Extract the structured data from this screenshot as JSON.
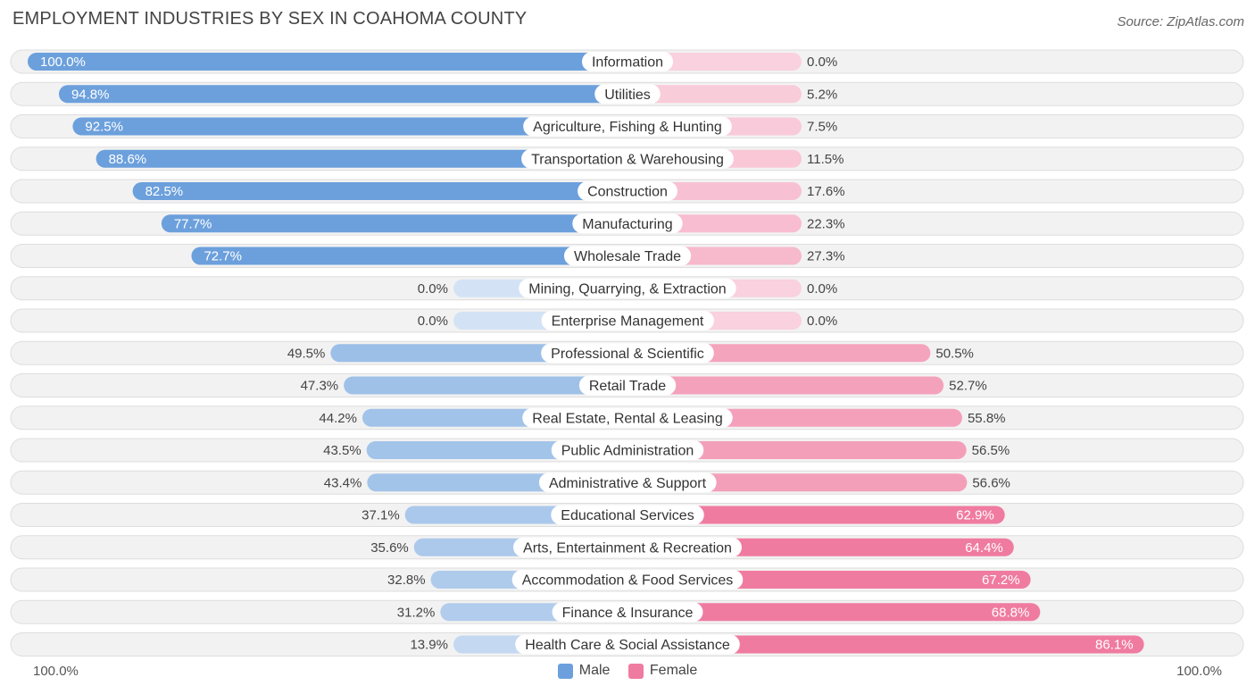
{
  "title": "EMPLOYMENT INDUSTRIES BY SEX IN COAHOMA COUNTY",
  "source": "Source: ZipAtlas.com",
  "colors": {
    "male": "#6ca0dc",
    "female": "#f07ba0",
    "row_bg": "#f2f2f2"
  },
  "legend": {
    "male_label": "Male",
    "female_label": "Female"
  },
  "axis": {
    "left_label": "100.0%",
    "right_label": "100.0%"
  },
  "chart_data": {
    "type": "bar",
    "orientation": "horizontal-diverging",
    "title": "EMPLOYMENT INDUSTRIES BY SEX IN COAHOMA COUNTY",
    "xlim": [
      -100,
      100
    ],
    "categories": [
      "Information",
      "Utilities",
      "Agriculture, Fishing & Hunting",
      "Transportation & Warehousing",
      "Construction",
      "Manufacturing",
      "Wholesale Trade",
      "Mining, Quarrying, & Extraction",
      "Enterprise Management",
      "Professional & Scientific",
      "Retail Trade",
      "Real Estate, Rental & Leasing",
      "Public Administration",
      "Administrative & Support",
      "Educational Services",
      "Arts, Entertainment & Recreation",
      "Accommodation & Food Services",
      "Finance & Insurance",
      "Health Care & Social Assistance"
    ],
    "series": [
      {
        "name": "Male",
        "values": [
          100.0,
          94.8,
          92.5,
          88.6,
          82.5,
          77.7,
          72.7,
          0.0,
          0.0,
          49.5,
          47.3,
          44.2,
          43.5,
          43.4,
          37.1,
          35.6,
          32.8,
          31.2,
          13.9
        ],
        "labels": [
          "100.0%",
          "94.8%",
          "92.5%",
          "88.6%",
          "82.5%",
          "77.7%",
          "72.7%",
          "0.0%",
          "0.0%",
          "49.5%",
          "47.3%",
          "44.2%",
          "43.5%",
          "43.4%",
          "37.1%",
          "35.6%",
          "32.8%",
          "31.2%",
          "13.9%"
        ]
      },
      {
        "name": "Female",
        "values": [
          0.0,
          5.2,
          7.5,
          11.5,
          17.6,
          22.3,
          27.3,
          0.0,
          0.0,
          50.5,
          52.7,
          55.8,
          56.5,
          56.6,
          62.9,
          64.4,
          67.2,
          68.8,
          86.1
        ],
        "labels": [
          "0.0%",
          "5.2%",
          "7.5%",
          "11.5%",
          "17.6%",
          "22.3%",
          "27.3%",
          "0.0%",
          "0.0%",
          "50.5%",
          "52.7%",
          "55.8%",
          "56.5%",
          "56.6%",
          "62.9%",
          "64.4%",
          "67.2%",
          "68.8%",
          "86.1%"
        ]
      }
    ]
  }
}
